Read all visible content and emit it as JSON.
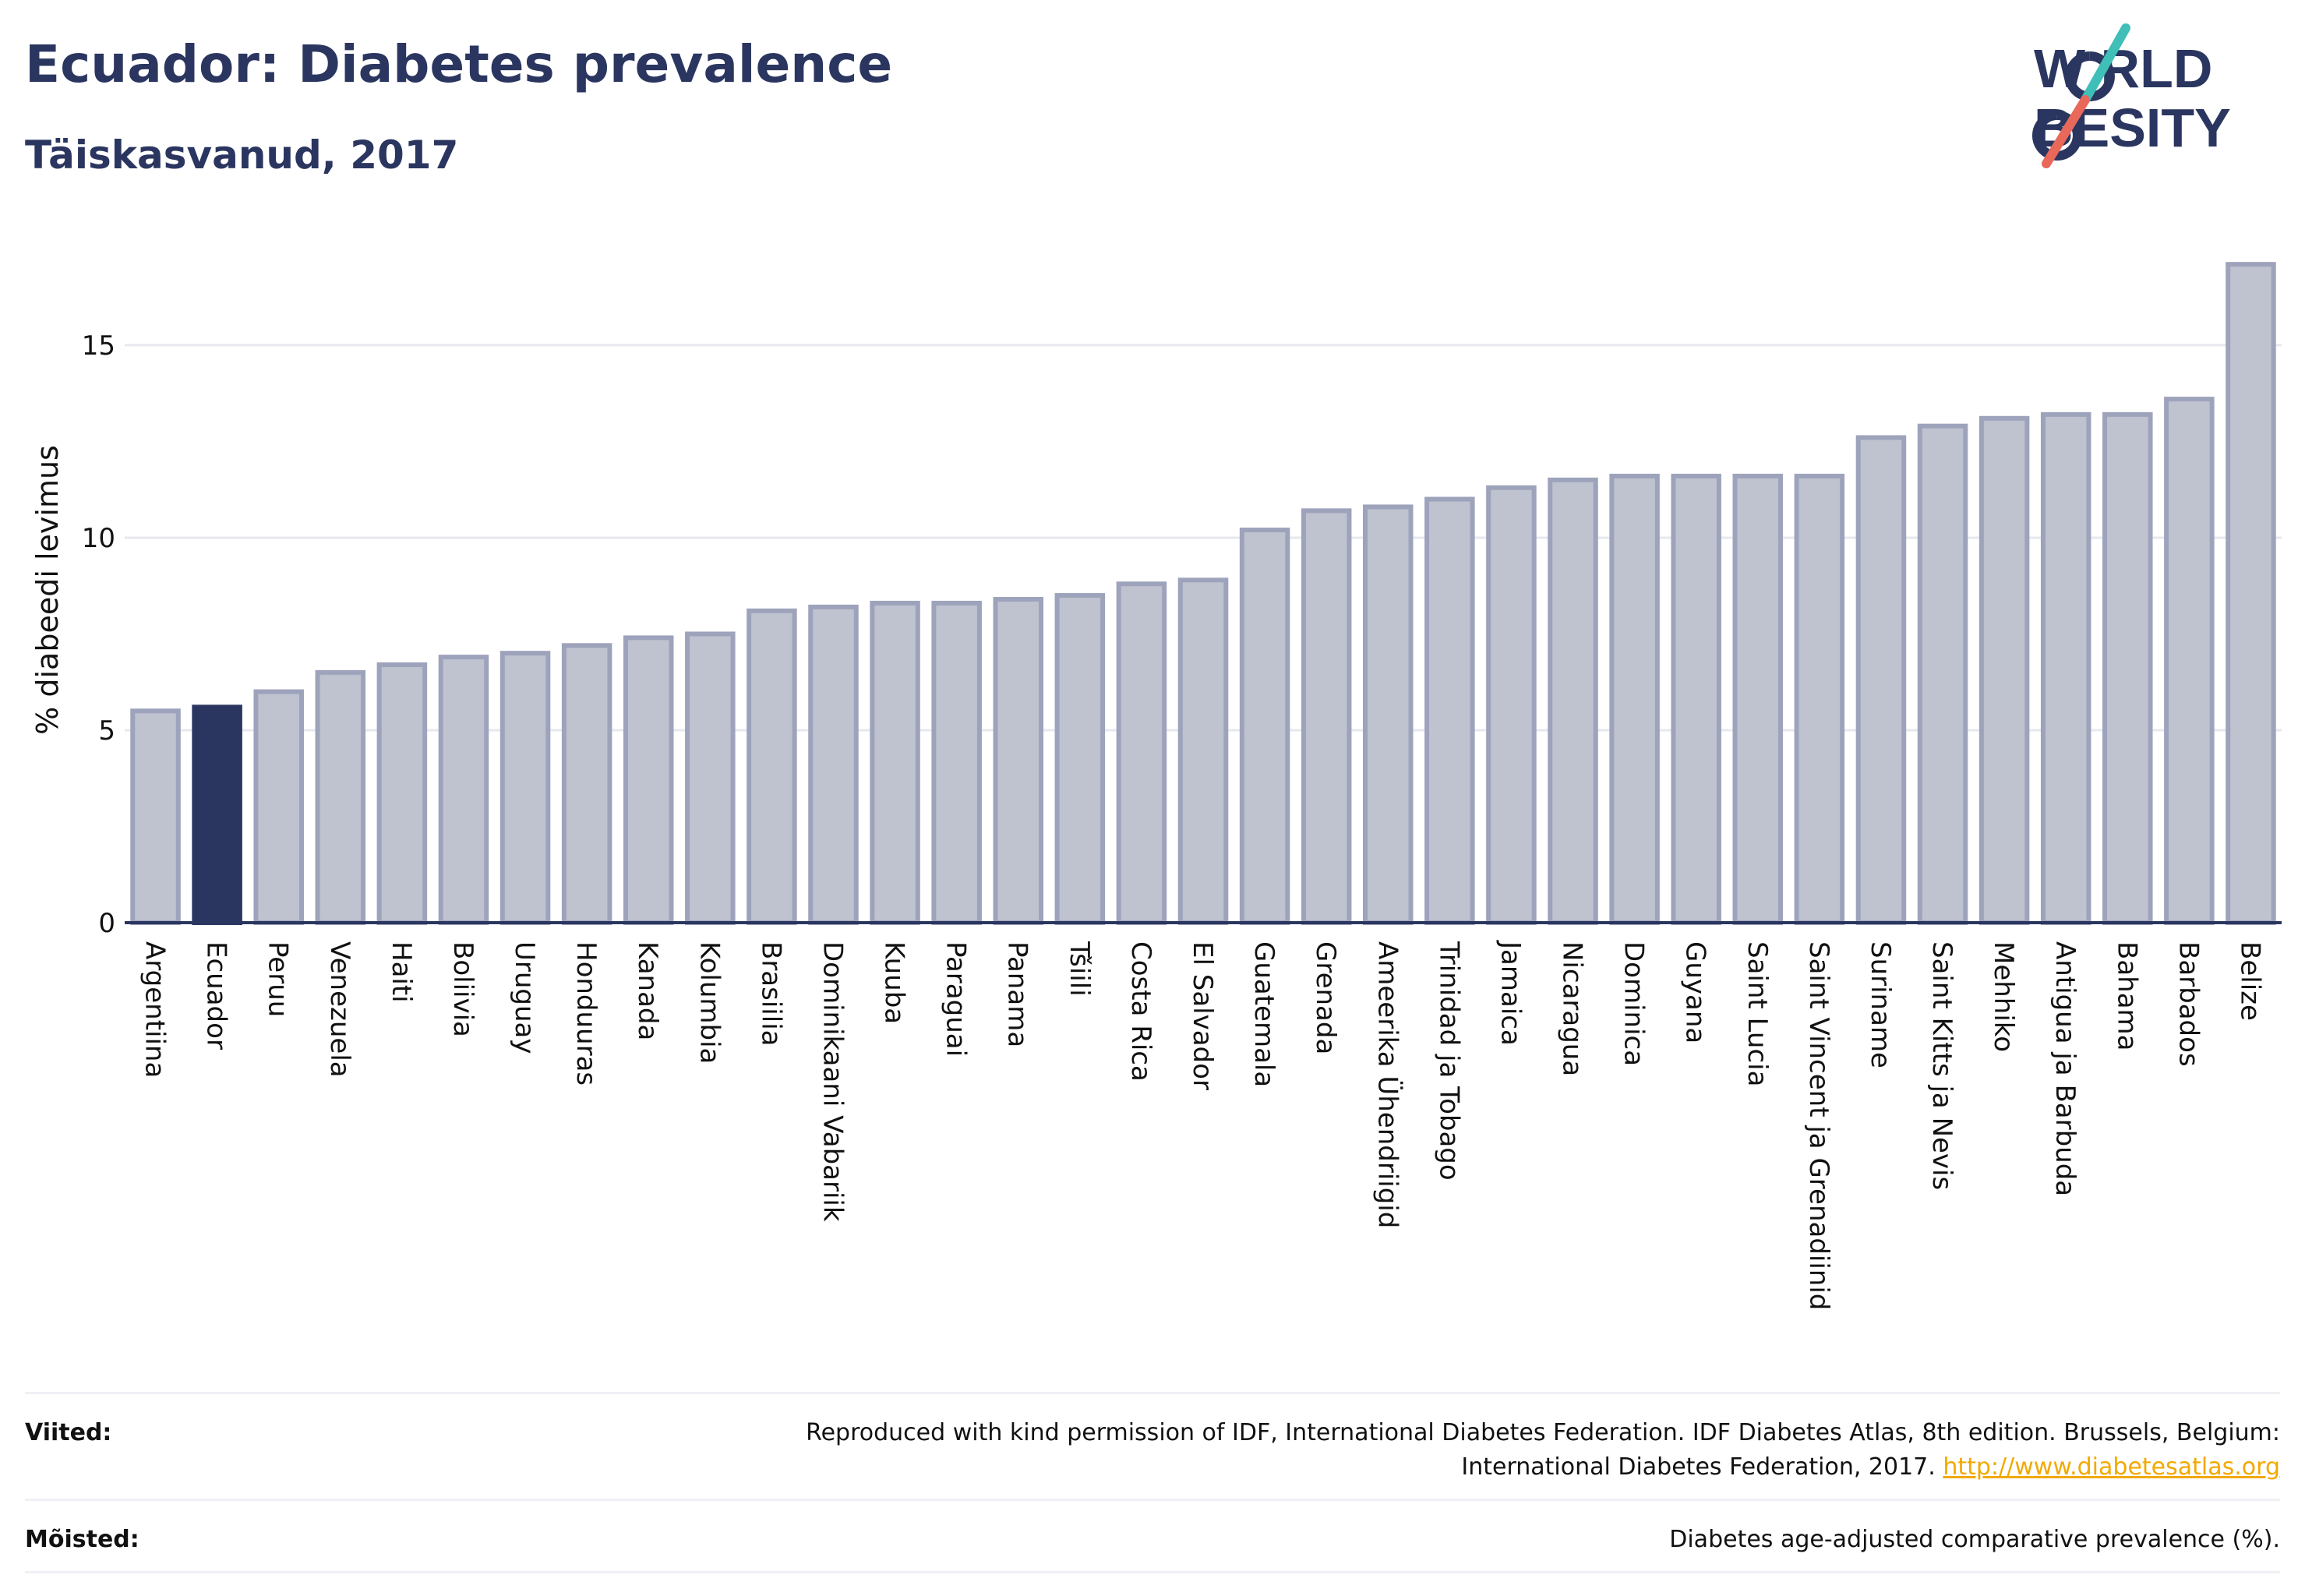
{
  "header": {
    "title": "Ecuador: Diabetes prevalence",
    "subtitle": "Täiskasvanud, 2017"
  },
  "logo": {
    "line1": "W RLD",
    "line2": "BESITY",
    "text": "WORLD OBESITY"
  },
  "chart_data": {
    "type": "bar",
    "ylabel": "% diabeedi levimus",
    "ylim": [
      0,
      18.5
    ],
    "yticks": [
      0,
      5,
      10,
      15
    ],
    "grid": true,
    "highlight": "Ecuador",
    "colors": {
      "bar": "#bfc2cf",
      "bar_border": "#9ea3bc",
      "highlight": "#2b3660",
      "axis": "#2b3660",
      "grid": "#e6e8ee"
    },
    "categories": [
      "Argentiina",
      "Ecuador",
      "Peruu",
      "Venezuela",
      "Haiti",
      "Boliivia",
      "Uruguay",
      "Honduuras",
      "Kanada",
      "Kolumbia",
      "Brasiilia",
      "Dominikaani Vabariik",
      "Kuuba",
      "Paraguai",
      "Panama",
      "Tšiili",
      "Costa Rica",
      "El Salvador",
      "Guatemala",
      "Grenada",
      "Ameerika Ühendriigid",
      "Trinidad ja Tobago",
      "Jamaica",
      "Nicaragua",
      "Dominica",
      "Guyana",
      "Saint Lucia",
      "Saint Vincent ja Grenadiinid",
      "Suriname",
      "Saint Kitts ja Nevis",
      "Mehhiko",
      "Antigua ja Barbuda",
      "Bahama",
      "Barbados",
      "Belize"
    ],
    "values": [
      5.5,
      5.6,
      6.0,
      6.5,
      6.7,
      6.9,
      7.0,
      7.2,
      7.4,
      7.5,
      8.1,
      8.2,
      8.3,
      8.3,
      8.4,
      8.5,
      8.8,
      8.9,
      10.2,
      10.7,
      10.8,
      11.0,
      11.3,
      11.5,
      11.6,
      11.6,
      11.6,
      11.6,
      12.6,
      12.9,
      13.1,
      13.2,
      13.2,
      13.6,
      17.1
    ]
  },
  "footer": {
    "sources_label": "Viited:",
    "sources_text": "Reproduced with kind permission of IDF, International Diabetes Federation. IDF Diabetes Atlas, 8th edition. Brussels, Belgium: International Diabetes Federation, 2017.",
    "sources_link": "http://www.diabetesatlas.org",
    "definitions_label": "Mõisted:",
    "definitions_text": "Diabetes age-adjusted comparative prevalence (%)."
  }
}
